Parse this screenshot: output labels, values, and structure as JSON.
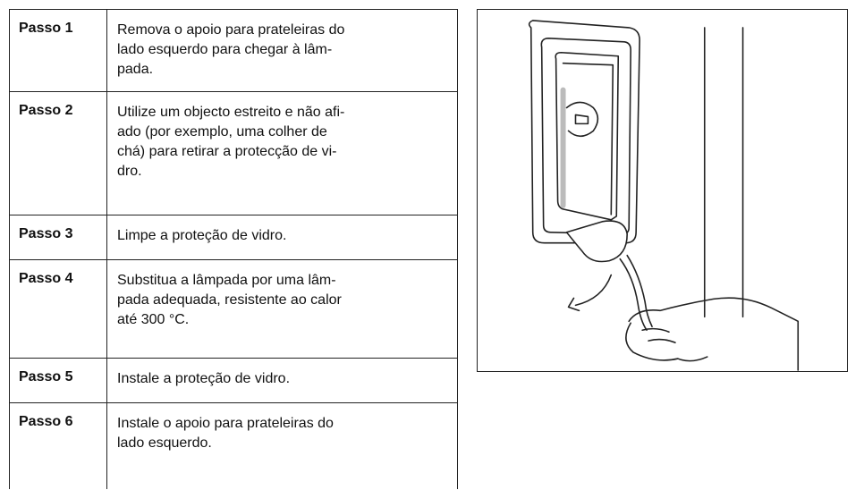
{
  "steps": [
    {
      "label": "Passo 1",
      "lines": [
        "Remova o apoio para prateleiras do",
        "lado esquerdo para chegar à lâm-",
        "pada."
      ]
    },
    {
      "label": "Passo 2",
      "lines": [
        "Utilize um objecto estreito e não afi-",
        "ado (por exemplo, uma colher de",
        "chá) para retirar a protecção de vi-",
        "dro."
      ]
    },
    {
      "label": "Passo 3",
      "lines": [
        "Limpe a proteção de vidro."
      ]
    },
    {
      "label": "Passo 4",
      "lines": [
        "Substitua a lâmpada por uma lâm-",
        "pada adequada, resistente ao calor",
        "até 300 °C."
      ]
    },
    {
      "label": "Passo 5",
      "lines": [
        "Instale a proteção de vidro."
      ]
    },
    {
      "label": "Passo 6",
      "lines": [
        "Instale o apoio para prateleiras do",
        "lado esquerdo."
      ]
    }
  ]
}
